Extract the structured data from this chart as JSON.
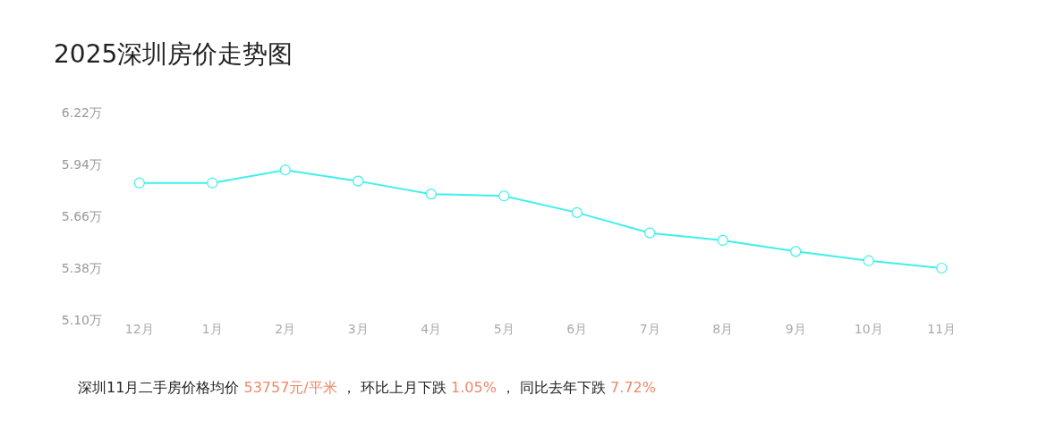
{
  "chart_data": {
    "type": "line",
    "title": "2025深圳房价走势图",
    "categories": [
      "12月",
      "1月",
      "2月",
      "3月",
      "4月",
      "5月",
      "6月",
      "7月",
      "8月",
      "9月",
      "10月",
      "11月"
    ],
    "series": [
      {
        "color": "#3ff0ea",
        "values": [
          5.84,
          5.84,
          5.91,
          5.85,
          5.78,
          5.77,
          5.68,
          5.57,
          5.53,
          5.47,
          5.42,
          5.38
        ]
      }
    ],
    "ylim": [
      5.1,
      6.22
    ],
    "yticks": [
      {
        "value": 5.1,
        "label": "5.10万"
      },
      {
        "value": 5.38,
        "label": "5.38万"
      },
      {
        "value": 5.66,
        "label": "5.66万"
      },
      {
        "value": 5.94,
        "label": "5.94万"
      },
      {
        "value": 6.22,
        "label": "6.22万"
      }
    ],
    "marker": "circle",
    "line_style": "solid",
    "annotations": [
      "深圳11月二手房价格均价 ",
      "53757元/平米",
      " ， 环比上月下跌 ",
      "1.05%",
      " ， 同比去年下跌 ",
      "7.72%"
    ]
  }
}
